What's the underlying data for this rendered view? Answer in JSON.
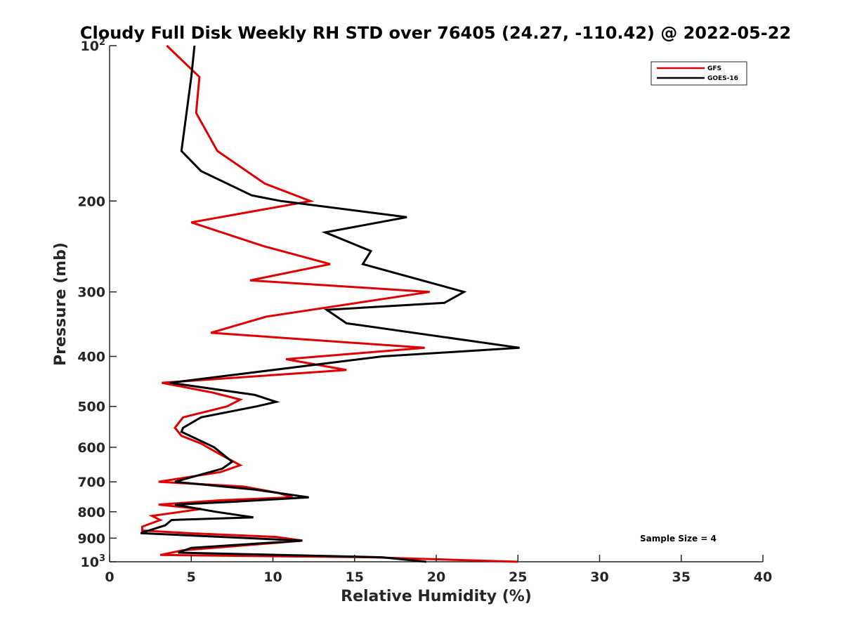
{
  "chart_data": {
    "type": "line",
    "title": "Cloudy Full Disk Weekly RH STD over 76405 (24.27, -110.42) @ 2022-05-22",
    "xlabel": "Relative Humidity (%)",
    "ylabel": "Pressure (mb)",
    "xlim": [
      0,
      40
    ],
    "ylim": [
      100,
      1000
    ],
    "yscale": "log",
    "y_reversed": true,
    "x_ticks": [
      0,
      5,
      10,
      15,
      20,
      25,
      30,
      35,
      40
    ],
    "y_ticks": [
      {
        "value": 100,
        "label": "10",
        "exp": "2"
      },
      {
        "value": 200,
        "label": "200"
      },
      {
        "value": 300,
        "label": "300"
      },
      {
        "value": 400,
        "label": "400"
      },
      {
        "value": 500,
        "label": "500"
      },
      {
        "value": 600,
        "label": "600"
      },
      {
        "value": 700,
        "label": "700"
      },
      {
        "value": 800,
        "label": "800"
      },
      {
        "value": 900,
        "label": "900"
      },
      {
        "value": 1000,
        "label": "10",
        "exp": "3"
      }
    ],
    "grid": false,
    "legend_position": "top-right",
    "series": [
      {
        "name": "GFS",
        "color": "#e00000",
        "points": [
          [
            3.5,
            100
          ],
          [
            5.5,
            115
          ],
          [
            5.3,
            135
          ],
          [
            6.6,
            160
          ],
          [
            9.5,
            185
          ],
          [
            12.3,
            200
          ],
          [
            5.0,
            220
          ],
          [
            9.5,
            245
          ],
          [
            13.5,
            265
          ],
          [
            8.6,
            285
          ],
          [
            19.6,
            300
          ],
          [
            9.6,
            335
          ],
          [
            6.2,
            360
          ],
          [
            19.3,
            385
          ],
          [
            10.8,
            405
          ],
          [
            14.5,
            425
          ],
          [
            3.2,
            450
          ],
          [
            6.3,
            470
          ],
          [
            8.0,
            485
          ],
          [
            7.2,
            500
          ],
          [
            4.5,
            525
          ],
          [
            4.0,
            550
          ],
          [
            4.4,
            570
          ],
          [
            5.6,
            590
          ],
          [
            6.6,
            615
          ],
          [
            8.0,
            650
          ],
          [
            6.8,
            670
          ],
          [
            3.0,
            700
          ],
          [
            8.2,
            715
          ],
          [
            10.3,
            735
          ],
          [
            11.2,
            750
          ],
          [
            6.8,
            760
          ],
          [
            3.0,
            775
          ],
          [
            5.6,
            790
          ],
          [
            2.6,
            815
          ],
          [
            3.1,
            830
          ],
          [
            2.0,
            855
          ],
          [
            2.0,
            870
          ],
          [
            4.8,
            880
          ],
          [
            10.2,
            895
          ],
          [
            11.8,
            910
          ],
          [
            10.0,
            920
          ],
          [
            4.5,
            950
          ],
          [
            3.1,
            970
          ],
          [
            16.0,
            980
          ],
          [
            25.0,
            1000
          ]
        ]
      },
      {
        "name": "GOES-16",
        "color": "#000000",
        "points": [
          [
            5.2,
            100
          ],
          [
            5.0,
            115
          ],
          [
            4.4,
            160
          ],
          [
            5.6,
            175
          ],
          [
            8.7,
            195
          ],
          [
            10.5,
            200
          ],
          [
            18.2,
            215
          ],
          [
            13.2,
            230
          ],
          [
            16.0,
            250
          ],
          [
            15.5,
            265
          ],
          [
            21.7,
            300
          ],
          [
            20.5,
            315
          ],
          [
            13.3,
            325
          ],
          [
            14.5,
            345
          ],
          [
            25.1,
            385
          ],
          [
            16.7,
            400
          ],
          [
            3.7,
            450
          ],
          [
            8.9,
            475
          ],
          [
            10.2,
            490
          ],
          [
            9.0,
            500
          ],
          [
            5.6,
            525
          ],
          [
            4.5,
            550
          ],
          [
            4.4,
            560
          ],
          [
            6.4,
            600
          ],
          [
            7.5,
            640
          ],
          [
            6.9,
            660
          ],
          [
            4.0,
            700
          ],
          [
            8.9,
            725
          ],
          [
            12.2,
            750
          ],
          [
            7.6,
            765
          ],
          [
            4.0,
            775
          ],
          [
            6.5,
            800
          ],
          [
            8.8,
            820
          ],
          [
            3.8,
            830
          ],
          [
            3.4,
            850
          ],
          [
            2.4,
            870
          ],
          [
            1.9,
            880
          ],
          [
            11.8,
            910
          ],
          [
            5.0,
            940
          ],
          [
            4.2,
            960
          ],
          [
            16.7,
            980
          ],
          [
            19.4,
            1000
          ]
        ]
      }
    ],
    "annotations": [
      {
        "text": "Sample Size = 4"
      }
    ]
  }
}
